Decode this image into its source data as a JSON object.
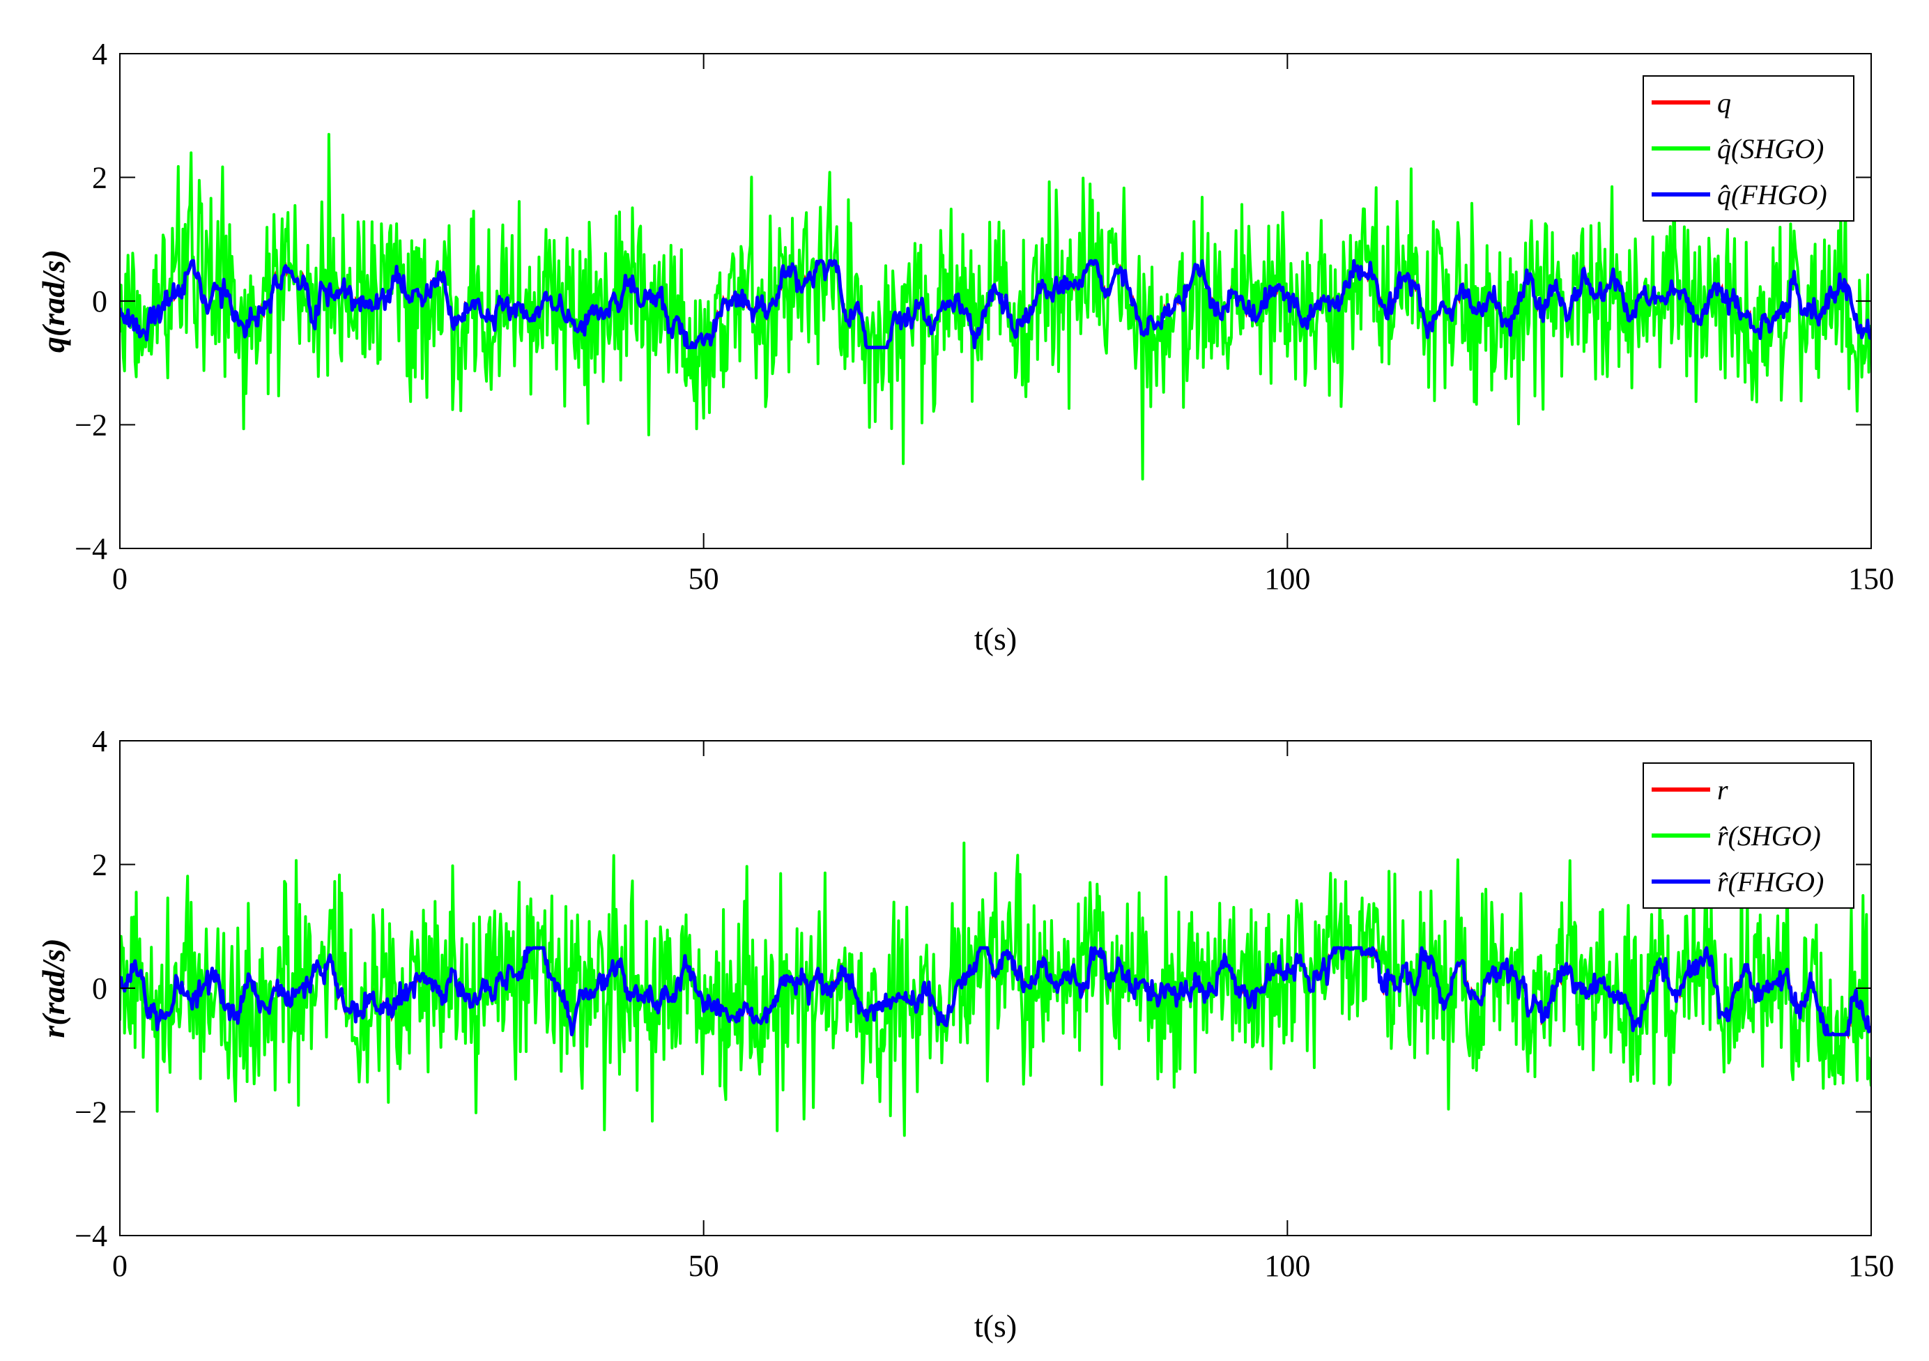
{
  "chart_data": [
    {
      "type": "line",
      "xlabel": "t(s)",
      "ylabel": "q(rad/s)",
      "xlim": [
        0,
        150
      ],
      "ylim": [
        -4,
        4
      ],
      "xticks": [
        0,
        50,
        100,
        150
      ],
      "yticks": [
        -4,
        -2,
        0,
        2,
        4
      ],
      "xtick_labels": [
        "0",
        "50",
        "100",
        "150"
      ],
      "ytick_labels": [
        "−4",
        "−2",
        "0",
        "2",
        "4"
      ],
      "grid": false,
      "legend_position": "top-right",
      "series": [
        {
          "name": "q",
          "color": "#ff0000",
          "description": "true value, hidden beneath FHGO estimate"
        },
        {
          "name": "q̂(SHGO)",
          "color": "#00ff00",
          "noise_amplitude": 1.0,
          "peak_max": 2.9,
          "peak_min": -2.7
        },
        {
          "name": "q̂(FHGO)",
          "color": "#0000ff",
          "range": [
            -0.6,
            0.6
          ]
        }
      ]
    },
    {
      "type": "line",
      "xlabel": "t(s)",
      "ylabel": "r(rad/s)",
      "xlim": [
        0,
        150
      ],
      "ylim": [
        -4,
        4
      ],
      "xticks": [
        0,
        50,
        100,
        150
      ],
      "yticks": [
        -4,
        -2,
        0,
        2,
        4
      ],
      "xtick_labels": [
        "0",
        "50",
        "100",
        "150"
      ],
      "ytick_labels": [
        "−4",
        "−2",
        "0",
        "2",
        "4"
      ],
      "grid": false,
      "legend_position": "top-right",
      "series": [
        {
          "name": "r",
          "color": "#ff0000",
          "description": "true value, hidden beneath FHGO estimate"
        },
        {
          "name": "r̂(SHGO)",
          "color": "#00ff00",
          "noise_amplitude": 1.0,
          "peak_max": 3.2,
          "peak_min": -2.8
        },
        {
          "name": "r̂(FHGO)",
          "color": "#0000ff",
          "range": [
            -0.7,
            0.6
          ]
        }
      ]
    }
  ]
}
